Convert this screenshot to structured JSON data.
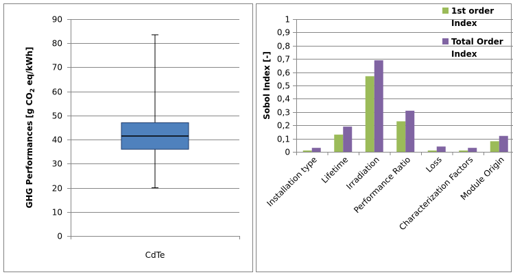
{
  "chart_data": [
    {
      "type": "box",
      "categories": [
        "CdTe"
      ],
      "ylabel": "GHG Performances [g CO2 eq/kWh]",
      "ylabel_parts": {
        "pre": "GHG Performances [g CO",
        "sub": "2",
        "post": " eq/kWh]"
      },
      "ylim": [
        0,
        90
      ],
      "yticks": [
        0,
        10,
        20,
        30,
        40,
        50,
        60,
        70,
        80,
        90
      ],
      "grid": true,
      "box": {
        "min": 20,
        "q1": 36,
        "median": 41.5,
        "q3": 47,
        "max": 83.5
      },
      "colors": {
        "box": "#4f81bd",
        "box_edge": "#1f3b6b"
      }
    },
    {
      "type": "bar",
      "categories": [
        "Installation type",
        "Lifetime",
        "Irradiation",
        "Performance Ratio",
        "Loss",
        "Characterization Factors",
        "Module Origin"
      ],
      "ylabel": "Sobol Index [-]",
      "ylim": [
        0,
        1
      ],
      "yticks": [
        "0",
        "0,1",
        "0,2",
        "0,3",
        "0,4",
        "0,5",
        "0,6",
        "0,7",
        "0,8",
        "0,9",
        "1"
      ],
      "grid": true,
      "legend_position": "top-right",
      "series": [
        {
          "name": "1st order Index",
          "values": [
            0.01,
            0.13,
            0.57,
            0.23,
            0.01,
            0.01,
            0.08
          ],
          "color": "#9bbb59"
        },
        {
          "name": "Total Order Index",
          "values": [
            0.03,
            0.19,
            0.69,
            0.31,
            0.04,
            0.03,
            0.12
          ],
          "color": "#8064a2"
        }
      ],
      "legend_lines": [
        [
          "1st order",
          "Index"
        ],
        [
          "Total Order",
          "Index"
        ]
      ]
    }
  ]
}
